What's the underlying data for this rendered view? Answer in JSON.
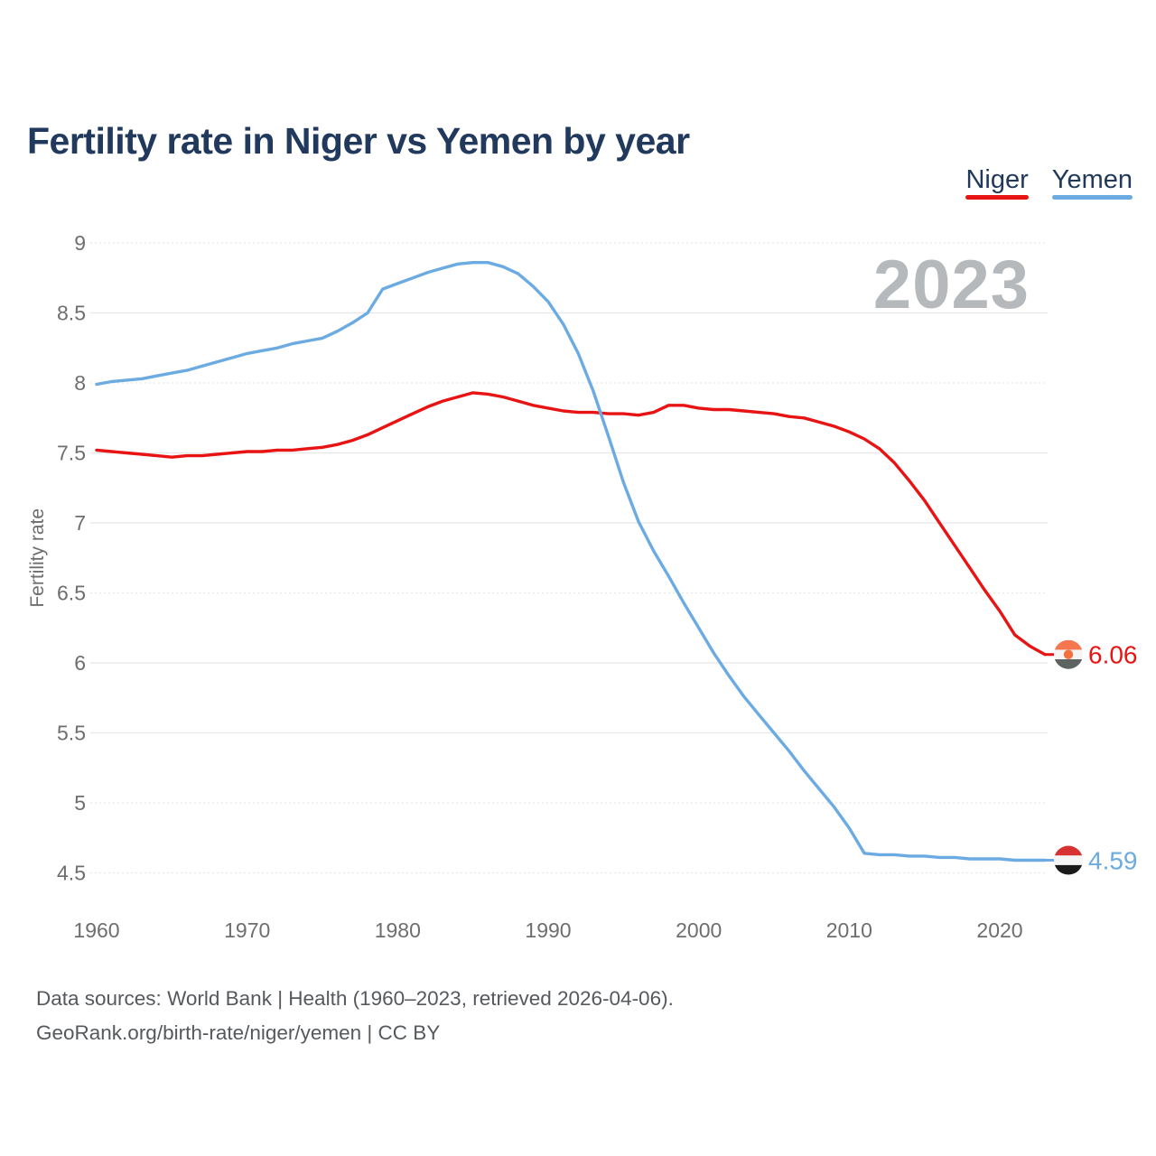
{
  "title": "Fertility rate in Niger vs Yemen by year",
  "legend": {
    "items": [
      {
        "label": "Niger",
        "color": "#e81414"
      },
      {
        "label": "Yemen",
        "color": "#6babe2"
      }
    ]
  },
  "watermark": "2023",
  "footer": {
    "line1": "Data sources: World Bank | Health (1960–2023, retrieved 2026-04-06).",
    "line2": "GeoRank.org/birth-rate/niger/yemen | CC BY"
  },
  "colors": {
    "niger": "#e81414",
    "yemen": "#6babe2",
    "title": "#21395c",
    "axis_text": "#6e6e6e",
    "grid": "#e7e7e7",
    "watermark": "#b5b9bc",
    "footer_text": "#55595d"
  },
  "flags": {
    "niger": {
      "name": "niger-flag-icon",
      "bands": [
        "#f5764f",
        "#f5f5f5",
        "#5d6360"
      ],
      "dot": "#f4703c"
    },
    "yemen": {
      "name": "yemen-flag-icon",
      "bands": [
        "#d83131",
        "#f5f5f5",
        "#1a1a1a"
      ]
    }
  },
  "chart_data": {
    "type": "line",
    "title": "Fertility rate in Niger vs Yemen by year",
    "xlabel": "",
    "ylabel": "Fertility rate",
    "x_range": [
      1960,
      2023
    ],
    "ylim": [
      4.5,
      9
    ],
    "yticks": [
      9,
      8.5,
      8,
      7.5,
      7,
      6.5,
      6,
      5.5,
      5,
      4.5
    ],
    "xticks": [
      1960,
      1970,
      1980,
      1990,
      2000,
      2010,
      2020
    ],
    "grid": true,
    "legend_position": "top-right",
    "x": [
      1960,
      1961,
      1962,
      1963,
      1964,
      1965,
      1966,
      1967,
      1968,
      1969,
      1970,
      1971,
      1972,
      1973,
      1974,
      1975,
      1976,
      1977,
      1978,
      1979,
      1980,
      1981,
      1982,
      1983,
      1984,
      1985,
      1986,
      1987,
      1988,
      1989,
      1990,
      1991,
      1992,
      1993,
      1994,
      1995,
      1996,
      1997,
      1998,
      1999,
      2000,
      2001,
      2002,
      2003,
      2004,
      2005,
      2006,
      2007,
      2008,
      2009,
      2010,
      2011,
      2012,
      2013,
      2014,
      2015,
      2016,
      2017,
      2018,
      2019,
      2020,
      2021,
      2022,
      2023
    ],
    "series": [
      {
        "name": "Niger",
        "color": "#e81414",
        "end_label": "6.06",
        "values": [
          7.52,
          7.51,
          7.5,
          7.49,
          7.48,
          7.47,
          7.48,
          7.48,
          7.49,
          7.5,
          7.51,
          7.51,
          7.52,
          7.52,
          7.53,
          7.54,
          7.56,
          7.59,
          7.63,
          7.68,
          7.73,
          7.78,
          7.83,
          7.87,
          7.9,
          7.93,
          7.92,
          7.9,
          7.87,
          7.84,
          7.82,
          7.8,
          7.79,
          7.79,
          7.78,
          7.78,
          7.77,
          7.79,
          7.84,
          7.84,
          7.82,
          7.81,
          7.81,
          7.8,
          7.79,
          7.78,
          7.76,
          7.75,
          7.72,
          7.69,
          7.65,
          7.6,
          7.53,
          7.43,
          7.3,
          7.16,
          7.0,
          6.84,
          6.68,
          6.52,
          6.37,
          6.2,
          6.12,
          6.06
        ]
      },
      {
        "name": "Yemen",
        "color": "#6babe2",
        "end_label": "4.59",
        "values": [
          7.99,
          8.01,
          8.02,
          8.03,
          8.05,
          8.07,
          8.09,
          8.12,
          8.15,
          8.18,
          8.21,
          8.23,
          8.25,
          8.28,
          8.3,
          8.32,
          8.37,
          8.43,
          8.5,
          8.67,
          8.71,
          8.75,
          8.79,
          8.82,
          8.85,
          8.86,
          8.86,
          8.83,
          8.78,
          8.69,
          8.58,
          8.42,
          8.21,
          7.94,
          7.62,
          7.29,
          7.01,
          6.8,
          6.62,
          6.43,
          6.25,
          6.07,
          5.91,
          5.76,
          5.63,
          5.5,
          5.37,
          5.23,
          5.1,
          4.97,
          4.82,
          4.64,
          4.63,
          4.63,
          4.62,
          4.62,
          4.61,
          4.61,
          4.6,
          4.6,
          4.6,
          4.59,
          4.59,
          4.59
        ]
      }
    ]
  }
}
